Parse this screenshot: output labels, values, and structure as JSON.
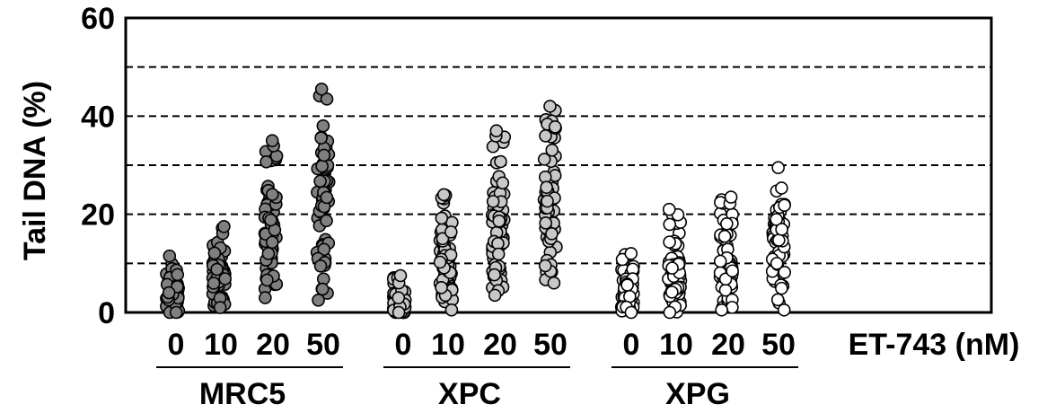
{
  "chart_data": {
    "type": "scatter",
    "title": "",
    "ylabel": "Tail DNA (%)",
    "xlabel": "ET-743 (nM)",
    "ylim": [
      0,
      60
    ],
    "yticks": [
      "0",
      "20",
      "40",
      "60"
    ],
    "grid": "dashed horizontal lines at 10, 20, 30, 40, 50",
    "grid_values": [
      10,
      20,
      30,
      40,
      50
    ],
    "groups": [
      {
        "name": "MRC5",
        "color": "#808080",
        "doses": [
          "0",
          "10",
          "20",
          "50"
        ],
        "series": [
          {
            "dose": "0",
            "min": 0,
            "max": 11.5,
            "median": 3
          },
          {
            "dose": "10",
            "min": 1,
            "max": 17.5,
            "median": 7
          },
          {
            "dose": "20",
            "min": 3,
            "max": 35,
            "median": 15
          },
          {
            "dose": "50",
            "min": 2.5,
            "max": 45.5,
            "median": 24
          }
        ]
      },
      {
        "name": "XPC",
        "color": "#c8c8c8",
        "doses": [
          "0",
          "10",
          "20",
          "50"
        ],
        "series": [
          {
            "dose": "0",
            "min": 0,
            "max": 7.5,
            "median": 2
          },
          {
            "dose": "10",
            "min": 0.5,
            "max": 24,
            "median": 9
          },
          {
            "dose": "20",
            "min": 3.5,
            "max": 37,
            "median": 17
          },
          {
            "dose": "50",
            "min": 6,
            "max": 42,
            "median": 22
          }
        ]
      },
      {
        "name": "XPG",
        "color": "#ffffff",
        "doses": [
          "0",
          "10",
          "20",
          "50"
        ],
        "series": [
          {
            "dose": "0",
            "min": 0,
            "max": 12,
            "median": 3
          },
          {
            "dose": "10",
            "min": 0,
            "max": 21,
            "median": 7
          },
          {
            "dose": "20",
            "min": 0.5,
            "max": 23.5,
            "median": 9
          },
          {
            "dose": "50",
            "min": 0.5,
            "max": 29.5,
            "median": 15
          }
        ]
      }
    ]
  }
}
